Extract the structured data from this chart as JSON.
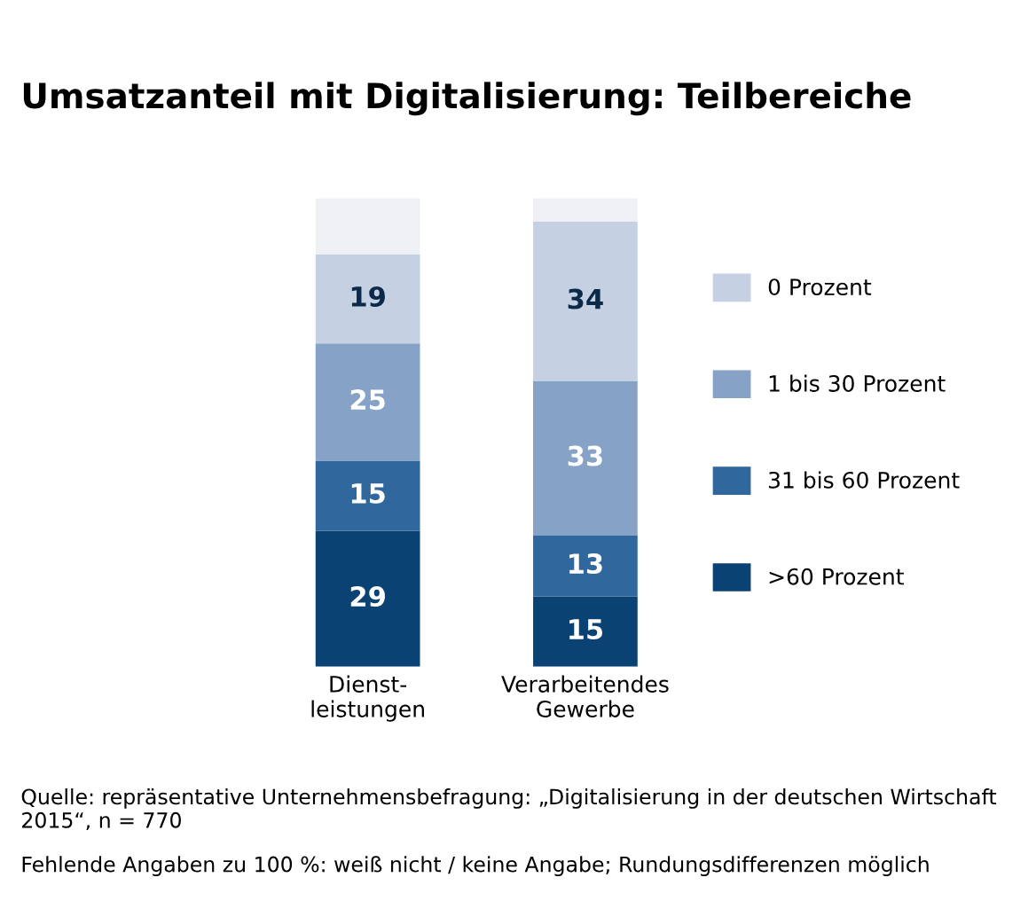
{
  "chart_data": {
    "type": "bar",
    "title": "Umsatzanteil mit Digitalisierung: Teilbereiche",
    "categories": [
      "Dienst-\nleistungen",
      "Verarbeitendes\nGewerbe"
    ],
    "stacked": true,
    "legend": "right",
    "ylim": [
      0,
      100
    ],
    "tick_labels": "x",
    "series": [
      {
        "name": ">60 Prozent",
        "color": "#0b4274",
        "values": [
          29,
          15
        ],
        "value_labels": [
          "29",
          "15"
        ]
      },
      {
        "name": "31 bis 60 Prozent",
        "color": "#30679c",
        "values": [
          15,
          13
        ],
        "value_labels": [
          "15",
          "13"
        ]
      },
      {
        "name": "1 bis 30 Prozent",
        "color": "#86a2c7",
        "values": [
          25,
          33
        ],
        "value_labels": [
          "25",
          "33"
        ]
      },
      {
        "name": "0 Prozent",
        "color": "#c5d0e3",
        "values": [
          19,
          34
        ],
        "value_labels": [
          "19",
          "34"
        ]
      },
      {
        "color": "#eef0f3",
        "values": [
          12,
          5
        ]
      }
    ],
    "annotations": [
      "Quelle: repräsentative Unternehmensbefragung: „Digitalisierung in der deutschen Wirtschaft 2015“, n = 770",
      "Fehlende Angaben zu 100 %: weiß nicht / keine Angabe; Rundungsdifferenzen möglich"
    ]
  }
}
